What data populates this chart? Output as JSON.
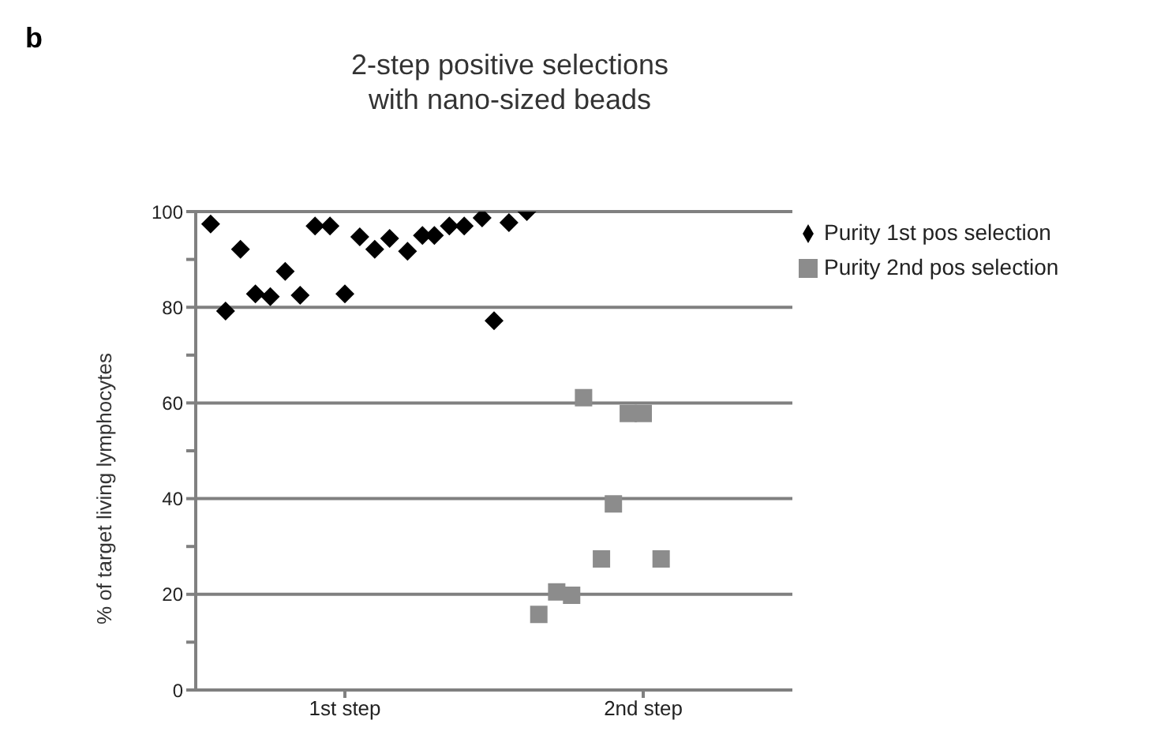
{
  "chart_data": {
    "type": "scatter",
    "title": "2-step positive selections\nwith nano-sized beads",
    "ylabel": "% of target living lymphocytes",
    "annotations": [
      "b"
    ],
    "xlim": [
      0.5,
      2.5
    ],
    "xticks": [
      {
        "value": 1,
        "label": "1st step"
      },
      {
        "value": 2,
        "label": "2nd step"
      }
    ],
    "ylim": [
      0,
      100
    ],
    "yticks": [
      0,
      {
        "value": 10,
        "label": null
      },
      20,
      {
        "value": 30,
        "label": null
      },
      40,
      {
        "value": 50,
        "label": null
      },
      60,
      {
        "value": 70,
        "label": null
      },
      80,
      {
        "value": 90,
        "label": null
      },
      100
    ],
    "grid": "y",
    "legend": "right",
    "series": [
      {
        "name": "Purity 1st pos selection",
        "color": "#000000",
        "marker": "diamond",
        "x": [
          0.55,
          0.6,
          0.65,
          0.7,
          0.75,
          0.8,
          0.85,
          0.9,
          0.95,
          1.0,
          1.05,
          1.1,
          1.15,
          1.21,
          1.26,
          1.3,
          1.35,
          1.4,
          1.46,
          1.5,
          1.55,
          1.61
        ],
        "values": [
          97.4,
          79.2,
          92.1,
          82.8,
          82.2,
          87.5,
          82.5,
          97.0,
          97.0,
          82.8,
          94.7,
          92.1,
          94.4,
          91.7,
          95.0,
          95.0,
          97.0,
          97.0,
          98.7,
          77.2,
          97.7,
          100
        ]
      },
      {
        "name": "Purity 2nd pos selection",
        "color": "#8c8c8c",
        "marker": "square",
        "x": [
          1.65,
          1.71,
          1.76,
          1.8,
          1.86,
          1.9,
          1.95,
          2.0,
          2.06
        ],
        "values": [
          15.8,
          20.5,
          19.8,
          61.1,
          27.4,
          38.9,
          57.8,
          57.8,
          27.4
        ]
      }
    ]
  }
}
